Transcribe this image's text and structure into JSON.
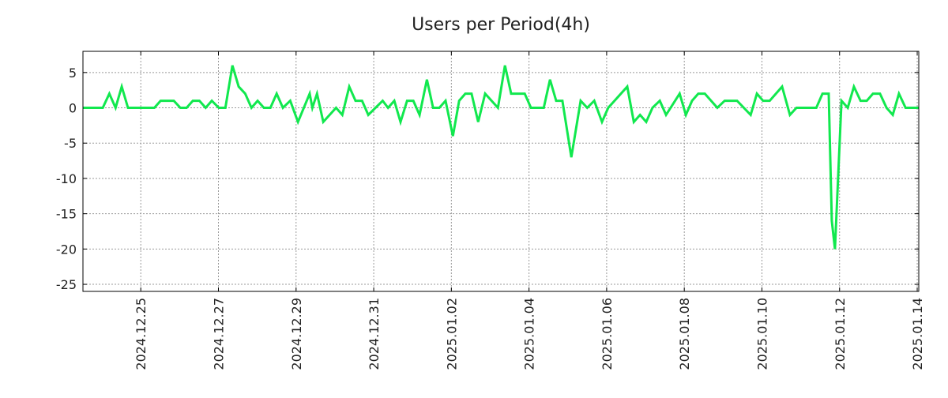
{
  "chart_data": {
    "type": "line",
    "title": "Users per Period(4h)",
    "xlabel": "",
    "ylabel": "",
    "x_units": "days since 2024.12.25 00:00",
    "xlim": [
      -1.49,
      20.04
    ],
    "ylim": [
      -26,
      8
    ],
    "grid": true,
    "legend": "none",
    "yticks": [
      5,
      0,
      -5,
      -10,
      -15,
      -20,
      -25
    ],
    "ytick_labels": [
      "5",
      "0",
      "-5",
      "-10",
      "-15",
      "-20",
      "-25"
    ],
    "xticks": [
      0,
      2,
      4,
      6,
      8,
      10,
      12,
      14,
      16,
      18,
      20
    ],
    "xtick_labels": [
      "2024.12.25",
      "2024.12.27",
      "2024.12.29",
      "2024.12.31",
      "2025.01.02",
      "2025.01.04",
      "2025.01.06",
      "2025.01.08",
      "2025.01.10",
      "2025.01.12",
      "2025.01.14"
    ],
    "series": [
      {
        "name": "Users",
        "color": "#11e84e",
        "x": [
          -1.49,
          -0.98,
          -0.81,
          -0.65,
          -0.49,
          -0.33,
          0.35,
          0.51,
          0.85,
          1.02,
          1.18,
          1.34,
          1.51,
          1.67,
          1.83,
          2.01,
          2.18,
          2.36,
          2.52,
          2.69,
          2.85,
          3.01,
          3.17,
          3.34,
          3.5,
          3.66,
          3.85,
          4.05,
          4.35,
          4.42,
          4.54,
          4.7,
          5.03,
          5.19,
          5.37,
          5.53,
          5.7,
          5.86,
          6.23,
          6.37,
          6.53,
          6.69,
          6.86,
          7.02,
          7.18,
          7.37,
          7.53,
          7.69,
          7.85,
          8.04,
          8.2,
          8.36,
          8.52,
          8.69,
          8.87,
          9.2,
          9.38,
          9.54,
          9.89,
          10.05,
          10.38,
          10.54,
          10.7,
          10.86,
          11.09,
          11.33,
          11.5,
          11.68,
          11.88,
          12.04,
          12.53,
          12.7,
          12.86,
          13.02,
          13.18,
          13.37,
          13.53,
          13.88,
          14.04,
          14.2,
          14.36,
          14.53,
          14.85,
          15.04,
          15.36,
          15.71,
          15.87,
          16.03,
          16.2,
          16.52,
          16.72,
          16.89,
          17.4,
          17.56,
          17.72,
          17.8,
          17.88,
          18.05,
          18.21,
          18.37,
          18.54,
          18.7,
          18.86,
          19.04,
          19.21,
          19.37,
          19.53,
          19.7,
          20.04
        ],
        "values": [
          0,
          0,
          2,
          0,
          3,
          0,
          0,
          1,
          1,
          0,
          0,
          1,
          1,
          0,
          1,
          0,
          0,
          6,
          3,
          2,
          0,
          1,
          0,
          0,
          2,
          0,
          1,
          -2,
          2,
          0,
          2,
          -2,
          0,
          -1,
          3,
          1,
          1,
          -1,
          1,
          0,
          1,
          -2,
          1,
          1,
          -1,
          4,
          0,
          0,
          1,
          -4,
          1,
          2,
          2,
          -2,
          2,
          0,
          6,
          2,
          2,
          0,
          0,
          4,
          1,
          1,
          -7,
          1,
          0,
          1,
          -2,
          0,
          3,
          -2,
          -1,
          -2,
          0,
          1,
          -1,
          2,
          -1,
          1,
          2,
          2,
          0,
          1,
          1,
          -1,
          2,
          1,
          1,
          3,
          -1,
          0,
          0,
          2,
          2,
          -16,
          -20,
          1,
          0,
          3,
          1,
          1,
          2,
          2,
          0,
          -1,
          2,
          0,
          0
        ]
      }
    ]
  }
}
